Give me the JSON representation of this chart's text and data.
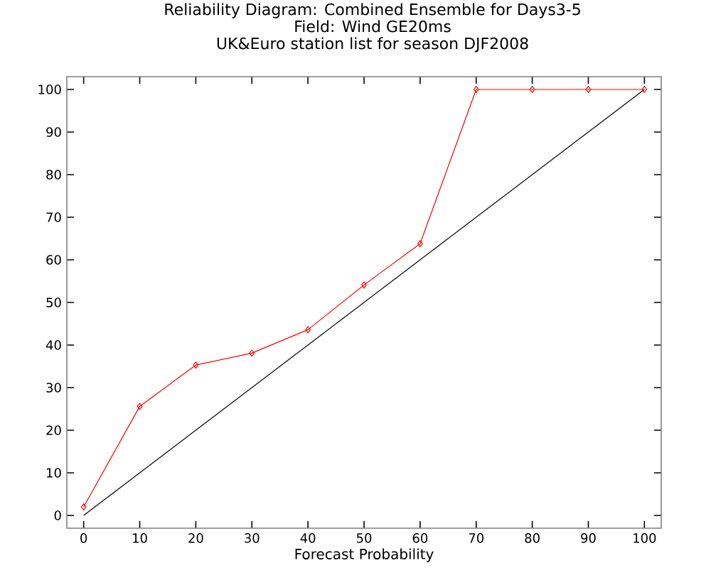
{
  "chart_data": {
    "type": "line",
    "title": "Reliability Diagram: Combined Ensemble for Days3-5",
    "subtitle": "Field: Wind GE20ms\nUK&Euro station list for season DJF2008",
    "xlabel": "Forecast Probability",
    "series": [
      {
        "color": "#000000",
        "x": [
          0,
          100
        ],
        "values": [
          0,
          100
        ],
        "marker": "none"
      },
      {
        "color": "#ff0000",
        "x": [
          0,
          10,
          20,
          30,
          40,
          50,
          60,
          70,
          80,
          90,
          100
        ],
        "values": [
          2,
          25.6,
          35.3,
          38.1,
          43.6,
          54.1,
          63.8,
          100,
          100,
          100,
          100
        ],
        "marker": "diamond"
      }
    ],
    "xlim": [
      -3,
      103
    ],
    "ylim": [
      -3,
      103
    ],
    "xticks": [
      0,
      10,
      20,
      30,
      40,
      50,
      60,
      70,
      80,
      90,
      100
    ],
    "yticks": [
      0,
      10,
      20,
      30,
      40,
      50,
      60,
      70,
      80,
      90,
      100
    ]
  }
}
